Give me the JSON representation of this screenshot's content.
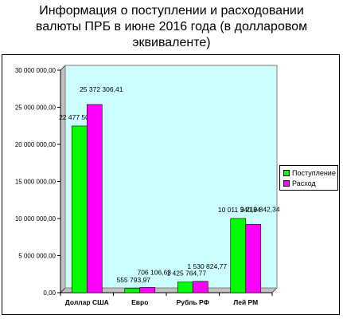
{
  "title_lines": [
    "Информация о поступлении и расходовании",
    "валюты ПРБ в июне 2016 года (в долларовом",
    "эквиваленте)"
  ],
  "colors": {
    "plot_background": "#ccffff",
    "series_income": "#00ff00",
    "series_expense": "#ff00ff"
  },
  "chart_data": {
    "type": "bar",
    "categories": [
      "Доллар США",
      "Евро",
      "Рубль РФ",
      "Лей РМ"
    ],
    "series": [
      {
        "name": "Поступление",
        "values": [
          22477508.69,
          555793.97,
          1425764.77,
          10011340.84
        ],
        "labels": [
          "22 477 508,69",
          "555 793,97",
          "1 425 764,77",
          "10 011 340,84"
        ]
      },
      {
        "name": "Расход",
        "values": [
          25372306.41,
          706106.63,
          1530824.77,
          9219842.34
        ],
        "labels": [
          "25 372 306,41",
          "706 106,63",
          "1 530 824,77",
          "9 219 842,34"
        ]
      }
    ],
    "ylim": [
      0,
      30000000
    ],
    "y_ticks": [
      {
        "value": 0,
        "label": "0,00"
      },
      {
        "value": 5000000,
        "label": "5 000 000,00"
      },
      {
        "value": 10000000,
        "label": "10 000 000,00"
      },
      {
        "value": 15000000,
        "label": "15 000 000,00"
      },
      {
        "value": 20000000,
        "label": "20 000 000,00"
      },
      {
        "value": 25000000,
        "label": "25 000 000,00"
      },
      {
        "value": 30000000,
        "label": "30 000 000,00"
      }
    ],
    "grid": false,
    "legend_position": "right"
  }
}
